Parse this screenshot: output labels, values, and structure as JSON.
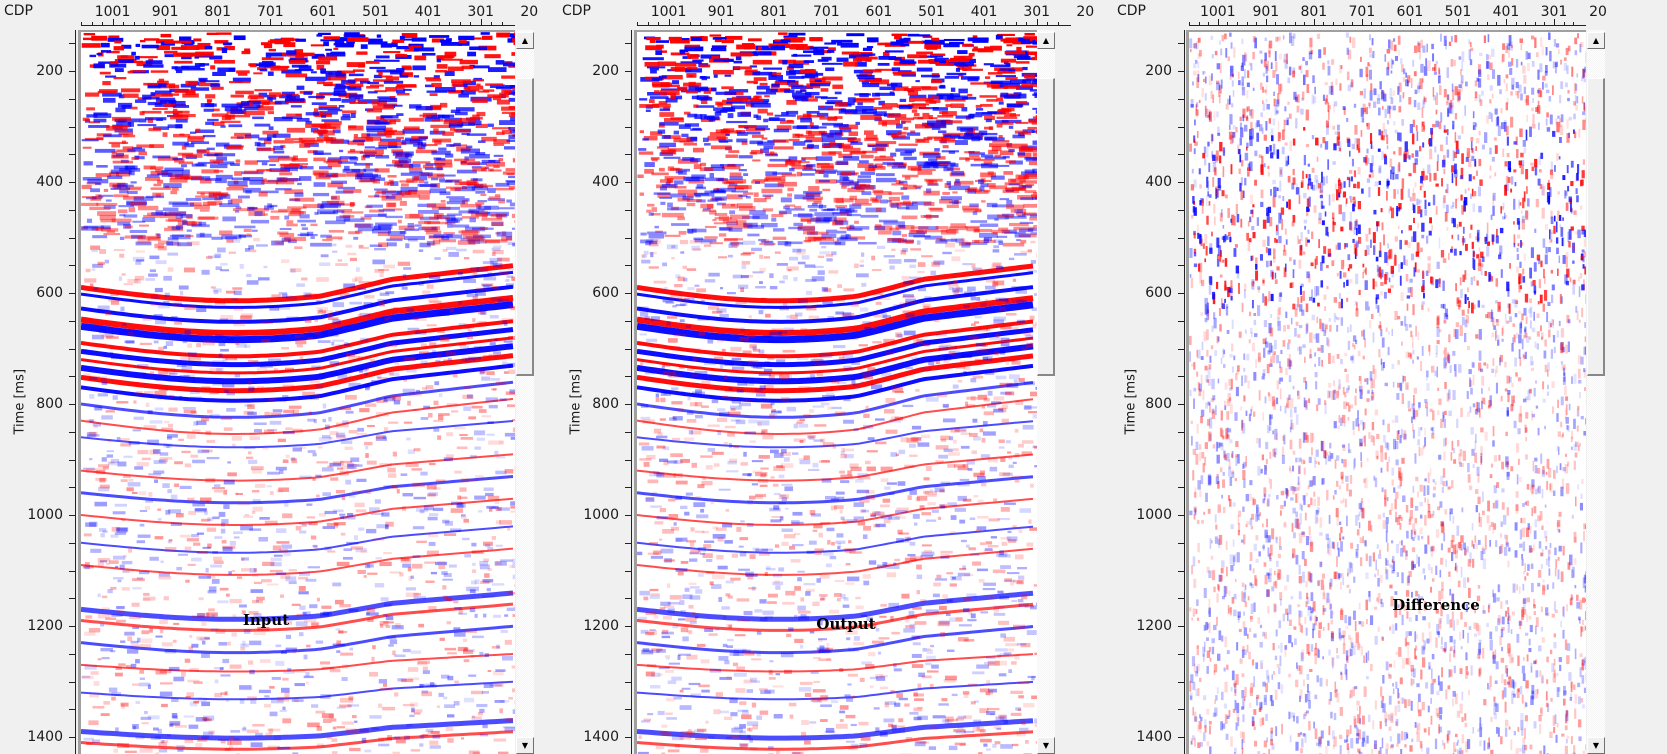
{
  "panels": [
    {
      "id": "input",
      "title": "Input",
      "x_axis_label": "CDP",
      "y_axis_label": "Time [ms]",
      "x_ticks": [
        "1001",
        "901",
        "801",
        "701",
        "601",
        "501",
        "401",
        "301",
        "20"
      ],
      "y_ticks": [
        "200",
        "400",
        "600",
        "800",
        "1000",
        "1200",
        "1400"
      ],
      "type": "full",
      "scroll_up": "▲",
      "scroll_down": "▼"
    },
    {
      "id": "output",
      "title": "Output",
      "x_axis_label": "CDP",
      "y_axis_label": "Time [ms]",
      "x_ticks": [
        "1001",
        "901",
        "801",
        "701",
        "601",
        "501",
        "401",
        "301",
        "20"
      ],
      "y_ticks": [
        "200",
        "400",
        "600",
        "800",
        "1000",
        "1200",
        "1400"
      ],
      "type": "full",
      "scroll_up": "▲",
      "scroll_down": "▼"
    },
    {
      "id": "difference",
      "title": "Difference",
      "x_axis_label": "CDP",
      "y_axis_label": "Time [ms]",
      "x_ticks": [
        "1001",
        "901",
        "801",
        "701",
        "601",
        "501",
        "401",
        "301",
        "20"
      ],
      "y_ticks": [
        "200",
        "400",
        "600",
        "800",
        "1000",
        "1200",
        "1400"
      ],
      "type": "diff",
      "scroll_up": "▲",
      "scroll_down": "▼"
    }
  ],
  "colors": {
    "positive": "#ff0000",
    "negative": "#0000ff",
    "background": "#f0f0f0"
  }
}
